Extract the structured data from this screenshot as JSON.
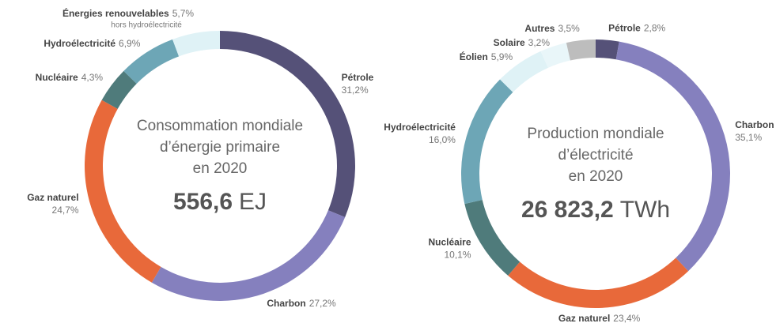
{
  "chart_data": [
    {
      "type": "pie",
      "title": [
        "Consommation mondiale",
        "d’énergie primaire",
        "en 2020"
      ],
      "total": "556,6",
      "unit": "EJ",
      "categories": [
        "Pétrole",
        "Charbon",
        "Gaz naturel",
        "Nucléaire",
        "Hydroélectricité",
        "Énergies renouvelables"
      ],
      "values": [
        31.2,
        27.2,
        24.7,
        4.3,
        6.9,
        5.7
      ],
      "value_labels": [
        "31,2%",
        "27,2%",
        "24,7%",
        "4,3%",
        "6,9%",
        "5,7%"
      ],
      "colors": [
        "#555178",
        "#8580be",
        "#e8693a",
        "#4f7b7b",
        "#6da6b6",
        "#dff2f6"
      ],
      "annotation": "hors hydroélectricité"
    },
    {
      "type": "pie",
      "title": [
        "Production mondiale",
        "d’électricité",
        "en 2020"
      ],
      "total": "26 823,2",
      "unit": "TWh",
      "categories": [
        "Pétrole",
        "Charbon",
        "Gaz naturel",
        "Nucléaire",
        "Hydroélectricité",
        "Éolien",
        "Solaire",
        "Autres"
      ],
      "values": [
        2.8,
        35.1,
        23.4,
        10.1,
        16.0,
        5.9,
        3.2,
        3.5
      ],
      "value_labels": [
        "2,8%",
        "35,1%",
        "23,4%",
        "10,1%",
        "16,0%",
        "5,9%",
        "3,2%",
        "3,5%"
      ],
      "colors": [
        "#555178",
        "#8580be",
        "#e8693a",
        "#4f7b7b",
        "#6da6b6",
        "#dff2f6",
        "#e9f6f9",
        "#bdbdbd"
      ]
    }
  ]
}
